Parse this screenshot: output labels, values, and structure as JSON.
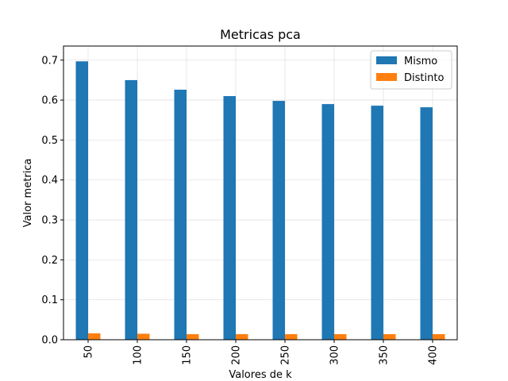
{
  "chart_data": {
    "type": "bar",
    "title": "Metricas pca",
    "xlabel": "Valores de k",
    "ylabel": "Valor metrica",
    "categories": [
      "50",
      "100",
      "150",
      "200",
      "250",
      "300",
      "350",
      "400"
    ],
    "series": [
      {
        "name": "Mismo",
        "color": "#1f77b4",
        "values": [
          0.697,
          0.65,
          0.626,
          0.61,
          0.598,
          0.59,
          0.586,
          0.582
        ]
      },
      {
        "name": "Distinto",
        "color": "#ff7f0e",
        "values": [
          0.016,
          0.015,
          0.014,
          0.014,
          0.014,
          0.014,
          0.014,
          0.014
        ]
      }
    ],
    "ylim": [
      0,
      0.7
    ],
    "yticks": [
      "0.0",
      "0.1",
      "0.2",
      "0.3",
      "0.4",
      "0.5",
      "0.6",
      "0.7"
    ],
    "grid": true,
    "legend": "top-right",
    "x_tick_rotation": "vertical"
  }
}
